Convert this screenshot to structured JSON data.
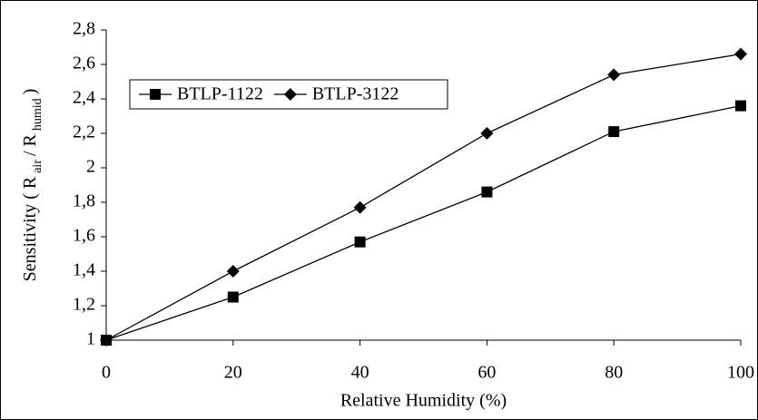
{
  "chart_data": {
    "type": "line",
    "xlabel": "Relative Humidity (%)",
    "ylabel_parts": [
      {
        "text": "Sensitivity ( R",
        "sub": false
      },
      {
        "text": "air",
        "sub": true
      },
      {
        "text": "/ R",
        "sub": false
      },
      {
        "text": "humid",
        "sub": true
      },
      {
        "text": ")",
        "sub": false
      }
    ],
    "x": [
      0,
      20,
      40,
      60,
      80,
      100
    ],
    "series": [
      {
        "name": "BTLP-1122",
        "color": "#000000",
        "marker": "square",
        "values": [
          1.0,
          1.25,
          1.57,
          1.86,
          2.21,
          2.36
        ]
      },
      {
        "name": "BTLP-3122",
        "color": "#000000",
        "marker": "diamond",
        "values": [
          1.0,
          1.4,
          1.77,
          2.2,
          2.54,
          2.66
        ]
      }
    ],
    "xlim": [
      0,
      100
    ],
    "xticks": [
      0,
      20,
      40,
      60,
      80,
      100
    ],
    "ylim": [
      1,
      2.8
    ],
    "yticks": [
      1,
      {
        "value": 1.2,
        "label": "1,2"
      },
      {
        "value": 1.4,
        "label": "1,4"
      },
      {
        "value": 1.6,
        "label": "1,6"
      },
      {
        "value": 1.8,
        "label": "1,8"
      },
      2,
      {
        "value": 2.2,
        "label": "2,2"
      },
      {
        "value": 2.4,
        "label": "2,4"
      },
      {
        "value": 2.6,
        "label": "2,6"
      },
      {
        "value": 2.8,
        "label": "2,8"
      }
    ],
    "grid": false,
    "legend": "top-left"
  }
}
